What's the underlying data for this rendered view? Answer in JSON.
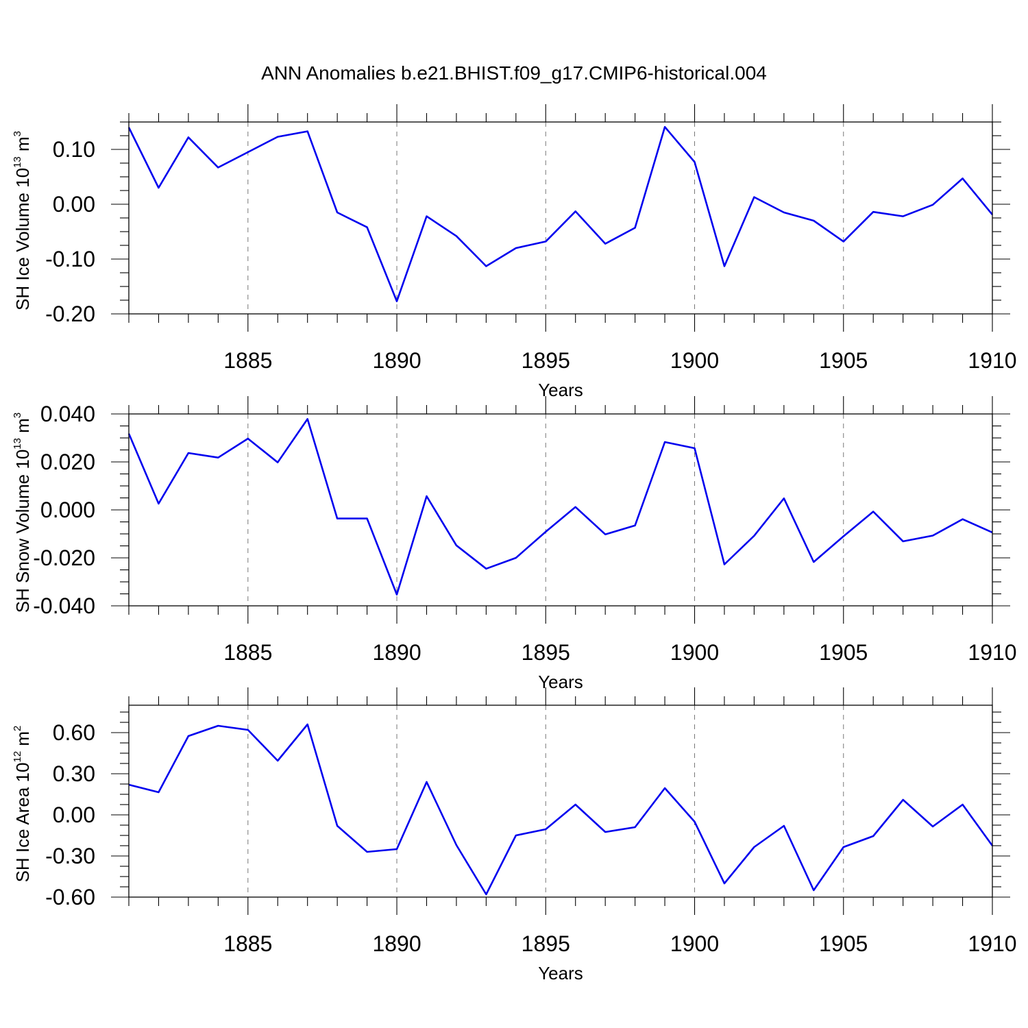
{
  "title": "ANN Anomalies b.e21.BHIST.f09_g17.CMIP6-historical.004",
  "colors": {
    "series": "#0000ee",
    "axis": "#000000",
    "grid": "#777777"
  },
  "chart_data": [
    {
      "type": "line",
      "name": "ice-volume",
      "ylabel": {
        "text": "SH Ice Volume 10",
        "exp1": "13",
        "unit": " m",
        "exp2": "3"
      },
      "xlabel": "Years",
      "xlim": [
        1881,
        1910
      ],
      "ylim": [
        -0.2,
        0.15
      ],
      "yticks": [
        0.1,
        0.0,
        -0.1,
        -0.2
      ],
      "ytick_labels": [
        "0.10",
        "0.00",
        "-0.10",
        "-0.20"
      ],
      "xticks": [
        1885,
        1890,
        1895,
        1900,
        1905,
        1910
      ],
      "xtick_labels": [
        "1885",
        "1890",
        "1895",
        "1900",
        "1905",
        "1910"
      ],
      "grid_x": [
        1885,
        1890,
        1895,
        1900,
        1905
      ],
      "x": [
        1881,
        1882,
        1883,
        1884,
        1885,
        1886,
        1887,
        1888,
        1889,
        1890,
        1891,
        1892,
        1893,
        1894,
        1895,
        1896,
        1897,
        1898,
        1899,
        1900,
        1901,
        1902,
        1903,
        1904,
        1905,
        1906,
        1907,
        1908,
        1909,
        1910
      ],
      "values": [
        0.14,
        0.03,
        0.122,
        0.067,
        0.095,
        0.123,
        0.133,
        -0.015,
        -0.042,
        -0.177,
        -0.022,
        -0.058,
        -0.113,
        -0.08,
        -0.068,
        -0.013,
        -0.072,
        -0.043,
        0.141,
        0.077,
        -0.113,
        0.013,
        -0.015,
        -0.03,
        -0.068,
        -0.014,
        -0.022,
        -0.001,
        0.047,
        -0.019
      ]
    },
    {
      "type": "line",
      "name": "snow-volume",
      "ylabel": {
        "text": "SH Snow Volume 10",
        "exp1": "13",
        "unit": " m",
        "exp2": "3"
      },
      "xlabel": "Years",
      "xlim": [
        1881,
        1910
      ],
      "ylim": [
        -0.04,
        0.04
      ],
      "yticks": [
        0.04,
        0.02,
        0.0,
        -0.02,
        -0.04
      ],
      "ytick_labels": [
        "0.040",
        "0.020",
        "0.000",
        "-0.020",
        "-0.040"
      ],
      "xticks": [
        1885,
        1890,
        1895,
        1900,
        1905,
        1910
      ],
      "xtick_labels": [
        "1885",
        "1890",
        "1895",
        "1900",
        "1905",
        "1910"
      ],
      "grid_x": [
        1885,
        1890,
        1895,
        1900,
        1905
      ],
      "x": [
        1881,
        1882,
        1883,
        1884,
        1885,
        1886,
        1887,
        1888,
        1889,
        1890,
        1891,
        1892,
        1893,
        1894,
        1895,
        1896,
        1897,
        1898,
        1899,
        1900,
        1901,
        1902,
        1903,
        1904,
        1905,
        1906,
        1907,
        1908,
        1909,
        1910
      ],
      "values": [
        0.0318,
        0.0026,
        0.0237,
        0.0218,
        0.0297,
        0.0198,
        0.0379,
        -0.0036,
        -0.0036,
        -0.0353,
        0.0057,
        -0.0148,
        -0.0245,
        -0.02,
        -0.0091,
        0.0012,
        -0.0102,
        -0.0065,
        0.0283,
        0.0257,
        -0.0227,
        -0.0108,
        0.0048,
        -0.0217,
        -0.011,
        -0.0007,
        -0.0131,
        -0.0107,
        -0.0039,
        -0.0094
      ]
    },
    {
      "type": "line",
      "name": "ice-area",
      "ylabel": {
        "text": "SH Ice Area 10",
        "exp1": "12",
        "unit": " m",
        "exp2": "2"
      },
      "xlabel": "Years",
      "xlim": [
        1881,
        1910
      ],
      "ylim": [
        -0.6,
        0.8
      ],
      "yticks": [
        0.6,
        0.3,
        0.0,
        -0.3,
        -0.6
      ],
      "ytick_labels": [
        "0.60",
        "0.30",
        "0.00",
        "-0.30",
        "-0.60"
      ],
      "xticks": [
        1885,
        1890,
        1895,
        1900,
        1905,
        1910
      ],
      "xtick_labels": [
        "1885",
        "1890",
        "1895",
        "1900",
        "1905",
        "1910"
      ],
      "grid_x": [
        1885,
        1890,
        1895,
        1900,
        1905
      ],
      "x": [
        1881,
        1882,
        1883,
        1884,
        1885,
        1886,
        1887,
        1888,
        1889,
        1890,
        1891,
        1892,
        1893,
        1894,
        1895,
        1896,
        1897,
        1898,
        1899,
        1900,
        1901,
        1902,
        1903,
        1904,
        1905,
        1906,
        1907,
        1908,
        1909,
        1910
      ],
      "values": [
        0.22,
        0.165,
        0.575,
        0.65,
        0.62,
        0.395,
        0.66,
        -0.08,
        -0.27,
        -0.25,
        0.24,
        -0.22,
        -0.58,
        -0.15,
        -0.105,
        0.075,
        -0.125,
        -0.09,
        0.195,
        -0.05,
        -0.5,
        -0.235,
        -0.08,
        -0.55,
        -0.235,
        -0.155,
        0.11,
        -0.085,
        0.075,
        -0.225
      ]
    }
  ]
}
